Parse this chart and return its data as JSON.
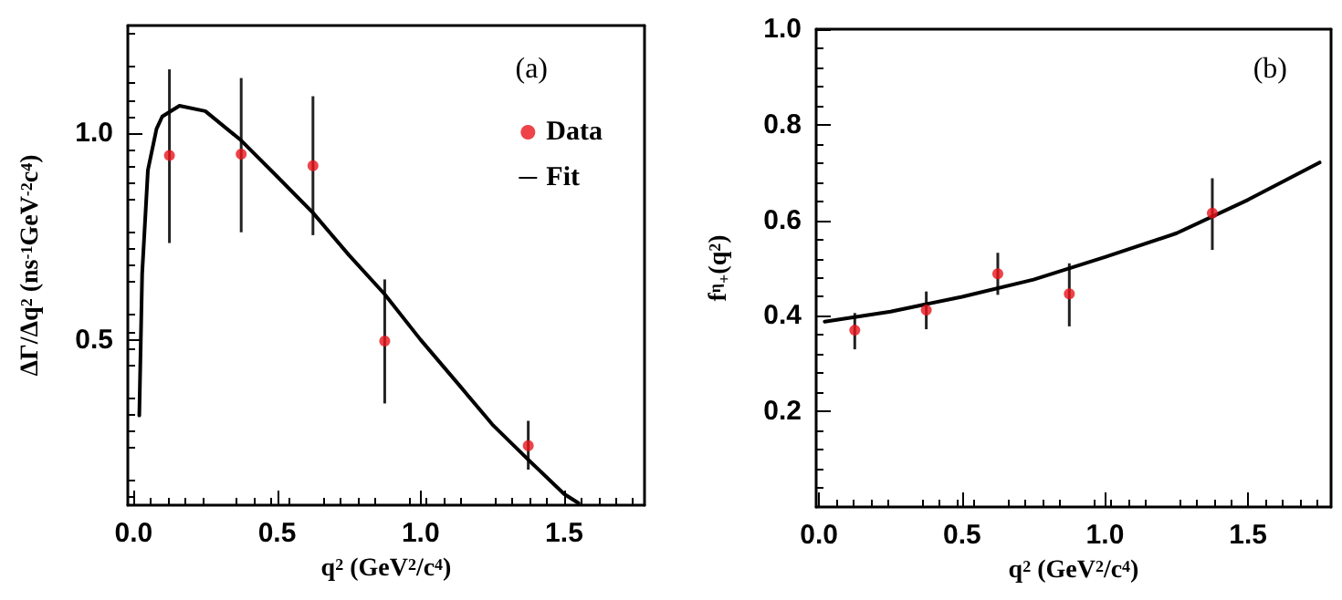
{
  "chart_data": [
    {
      "type": "scatter",
      "xlabel": "q$^{2}$ (GeV$^{2}$/c$^{4}$)",
      "ylabel": "ΔΓ/Δq$^{2}$ (ns$^{-1}$GeV$^{-2}$c$^{4}$)",
      "annotations": [
        "(a)"
      ],
      "xlim": [
        -0.02,
        1.78
      ],
      "xticks": [
        {
          "value": 0,
          "label": "0.0"
        },
        {
          "value": 0.5,
          "label": "0.5"
        },
        {
          "value": 1,
          "label": "1.0"
        },
        {
          "value": 1.5,
          "label": "1.5"
        }
      ],
      "ylim": [
        0.1,
        1.26
      ],
      "yticks": [
        {
          "value": 0.5,
          "label": "0.5"
        },
        {
          "value": 1,
          "label": "1.0"
        }
      ],
      "grid": false,
      "legend": "top right",
      "series": [
        {
          "name": "Data",
          "color": "#e8141c",
          "marker": "circle",
          "x": [
            0.125,
            0.375,
            0.625,
            0.875,
            1.375
          ],
          "values": [
            0.946,
            0.949,
            0.921,
            0.497,
            0.244
          ],
          "errors": [
            [
              0.734,
              1.154
            ],
            [
              0.76,
              1.133
            ],
            [
              0.753,
              1.089
            ],
            [
              0.346,
              0.646
            ],
            [
              0.186,
              0.304
            ]
          ]
        },
        {
          "name": "Fit",
          "type": "line",
          "color": "#000000",
          "marker": "none",
          "line_style": "solid",
          "x": [
            0.02,
            0.03,
            0.05,
            0.08,
            0.1,
            0.16,
            0.25,
            0.375,
            0.5,
            0.625,
            0.75,
            0.875,
            1.0,
            1.125,
            1.25,
            1.375,
            1.5,
            1.55
          ],
          "values": [
            0.317,
            0.66,
            0.91,
            1.01,
            1.04,
            1.066,
            1.053,
            0.982,
            0.895,
            0.807,
            0.705,
            0.61,
            0.5,
            0.398,
            0.295,
            0.21,
            0.127,
            0.105
          ]
        }
      ]
    },
    {
      "type": "scatter",
      "xlabel": "q$^{2}$ (GeV$^{2}$/c$^{4}$)",
      "ylabel": "f$^{η}$$_{+}$(q$^{2}$)",
      "annotations": [
        "(b)"
      ],
      "xlim": [
        -0.01,
        1.79
      ],
      "xticks": [
        {
          "value": 0,
          "label": "0.0"
        },
        {
          "value": 0.5,
          "label": "0.5"
        },
        {
          "value": 1,
          "label": "1.0"
        },
        {
          "value": 1.5,
          "label": "1.5"
        }
      ],
      "ylim": [
        0,
        1
      ],
      "yticks": [
        {
          "value": 0.2,
          "label": "0.2"
        },
        {
          "value": 0.4,
          "label": "0.4"
        },
        {
          "value": 0.6,
          "label": "0.6"
        },
        {
          "value": 0.8,
          "label": "0.8"
        },
        {
          "value": 1,
          "label": "1.0"
        }
      ],
      "grid": false,
      "legend": false,
      "series": [
        {
          "color": "#e8141c",
          "marker": "circle",
          "x": [
            0.125,
            0.375,
            0.625,
            0.875,
            1.375
          ],
          "values": [
            0.37,
            0.412,
            0.488,
            0.446,
            0.615
          ],
          "errors": [
            [
              0.33,
              0.406
            ],
            [
              0.372,
              0.451
            ],
            [
              0.444,
              0.532
            ],
            [
              0.378,
              0.51
            ],
            [
              0.538,
              0.688
            ]
          ]
        },
        {
          "type": "line",
          "color": "#000000",
          "marker": "none",
          "line_style": "solid",
          "x": [
            0.02,
            0.25,
            0.5,
            0.75,
            1.0,
            1.25,
            1.5,
            1.75
          ],
          "values": [
            0.388,
            0.409,
            0.44,
            0.476,
            0.523,
            0.573,
            0.643,
            0.721
          ]
        }
      ]
    }
  ]
}
